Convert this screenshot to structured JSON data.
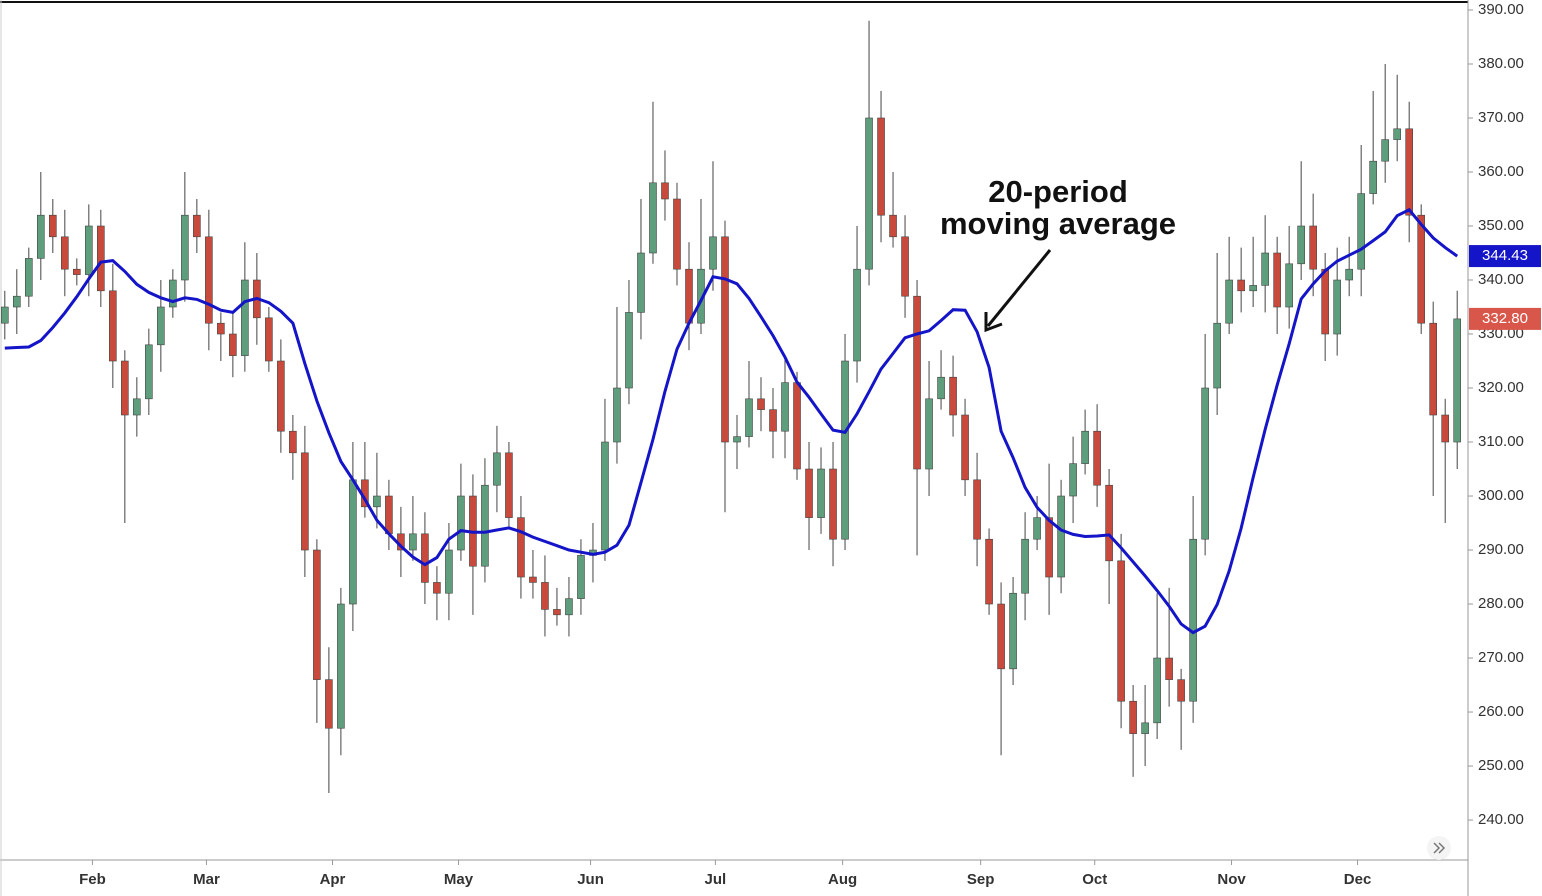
{
  "chart_data": {
    "type": "candlestick",
    "annotation": {
      "lines": [
        "20-period",
        "moving average"
      ]
    },
    "xlim": [
      -0.4,
      121.9
    ],
    "xticks": [
      {
        "value": 7.3,
        "label": "Feb"
      },
      {
        "value": 16.8,
        "label": "Mar"
      },
      {
        "value": 27.3,
        "label": "Apr"
      },
      {
        "value": 37.8,
        "label": "May"
      },
      {
        "value": 48.8,
        "label": "Jun"
      },
      {
        "value": 59.2,
        "label": "Jul"
      },
      {
        "value": 69.8,
        "label": "Aug"
      },
      {
        "value": 81.3,
        "label": "Sep"
      },
      {
        "value": 90.8,
        "label": "Oct"
      },
      {
        "value": 102.2,
        "label": "Nov"
      },
      {
        "value": 112.7,
        "label": "Dec"
      }
    ],
    "ylim": [
      232.6,
      391.85
    ],
    "yticks": [
      {
        "value": 240,
        "label": "240.00"
      },
      {
        "value": 250,
        "label": "250.00"
      },
      {
        "value": 260,
        "label": "260.00"
      },
      {
        "value": 270,
        "label": "270.00"
      },
      {
        "value": 280,
        "label": "280.00"
      },
      {
        "value": 290,
        "label": "290.00"
      },
      {
        "value": 300,
        "label": "300.00"
      },
      {
        "value": 310,
        "label": "310.00"
      },
      {
        "value": 320,
        "label": "320.00"
      },
      {
        "value": 330,
        "label": "330.00"
      },
      {
        "value": 340,
        "label": "340.00"
      },
      {
        "value": 350,
        "label": "350.00"
      },
      {
        "value": 360,
        "label": "360.00"
      },
      {
        "value": 370,
        "label": "370.00"
      },
      {
        "value": 380,
        "label": "380.00"
      },
      {
        "value": 390,
        "label": "390.00"
      }
    ],
    "candles": {
      "up_color": "#5e9e7c",
      "down_color": "#c84a3c",
      "wick_color": "#444444",
      "open": [
        332,
        335,
        337,
        344,
        352,
        348,
        342,
        341,
        350,
        338,
        325,
        315,
        318,
        328,
        335,
        340,
        352,
        348,
        332,
        330,
        326,
        340,
        333,
        325,
        312,
        308,
        290,
        266,
        257,
        280,
        303,
        298,
        300,
        293,
        290,
        293,
        284,
        282,
        290,
        300,
        287,
        302,
        308,
        296,
        285,
        284,
        279,
        278,
        281,
        289,
        290,
        310,
        320,
        334,
        345,
        358,
        355,
        342,
        332,
        342,
        348,
        310,
        311,
        318,
        316,
        312,
        321,
        305,
        296,
        305,
        292,
        325,
        342,
        370,
        352,
        348,
        337,
        305,
        318,
        322,
        315,
        303,
        292,
        280,
        268,
        282,
        292,
        296,
        285,
        300,
        306,
        312,
        302,
        288,
        262,
        256,
        258,
        270,
        266,
        262,
        292,
        320,
        332,
        340,
        338,
        339,
        345,
        335,
        343,
        350,
        342,
        330,
        340,
        342,
        356,
        362,
        366,
        368,
        352,
        332,
        315,
        310
      ],
      "high": [
        338,
        342,
        346,
        360,
        355,
        353,
        344,
        354,
        353,
        343,
        327,
        322,
        331,
        340,
        342,
        360,
        355,
        353,
        334,
        334,
        347,
        345,
        335,
        329,
        315,
        313,
        292,
        272,
        283,
        310,
        310,
        308,
        303,
        298,
        300,
        297,
        287,
        295,
        306,
        304,
        307,
        313,
        310,
        300,
        290,
        289,
        283,
        285,
        292,
        295,
        318,
        335,
        340,
        355,
        373,
        364,
        358,
        347,
        355,
        362,
        351,
        315,
        325,
        322,
        320,
        326,
        323,
        310,
        309,
        310,
        330,
        350,
        388,
        375,
        360,
        352,
        340,
        325,
        327,
        326,
        318,
        308,
        294,
        284,
        285,
        297,
        300,
        306,
        303,
        311,
        316,
        317,
        305,
        293,
        265,
        265,
        282,
        283,
        268,
        300,
        330,
        345,
        348,
        346,
        348,
        352,
        348,
        350,
        362,
        356,
        345,
        346,
        348,
        365,
        375,
        380,
        378,
        373,
        354,
        336,
        318,
        338
      ],
      "low": [
        329,
        330,
        335,
        340,
        345,
        337,
        339,
        337,
        335,
        320,
        295,
        311,
        315,
        323,
        333,
        336,
        345,
        327,
        325,
        322,
        323,
        328,
        323,
        308,
        303,
        285,
        258,
        245,
        252,
        275,
        296,
        294,
        290,
        285,
        288,
        280,
        277,
        277,
        288,
        278,
        284,
        297,
        294,
        281,
        281,
        274,
        276,
        274,
        278,
        284,
        288,
        306,
        317,
        329,
        343,
        351,
        339,
        327,
        330,
        338,
        297,
        305,
        309,
        312,
        307,
        307,
        303,
        290,
        293,
        287,
        290,
        321,
        339,
        347,
        346,
        333,
        289,
        300,
        316,
        311,
        300,
        287,
        278,
        252,
        265,
        277,
        290,
        278,
        282,
        295,
        304,
        298,
        280,
        257,
        248,
        250,
        255,
        261,
        253,
        258,
        289,
        315,
        330,
        334,
        335,
        334,
        330,
        331,
        340,
        337,
        325,
        326,
        337,
        337,
        354,
        358,
        362,
        347,
        330,
        300,
        295,
        305
      ],
      "close": [
        335,
        337,
        344,
        352,
        348,
        342,
        341,
        350,
        338,
        325,
        315,
        318,
        328,
        335,
        340,
        352,
        348,
        332,
        330,
        326,
        340,
        333,
        325,
        312,
        308,
        290,
        266,
        257,
        280,
        303,
        298,
        300,
        293,
        290,
        293,
        284,
        282,
        290,
        300,
        287,
        302,
        308,
        296,
        285,
        284,
        279,
        278,
        281,
        289,
        290,
        310,
        320,
        334,
        345,
        358,
        355,
        342,
        332,
        342,
        348,
        310,
        311,
        318,
        316,
        312,
        321,
        305,
        296,
        305,
        292,
        325,
        342,
        370,
        352,
        348,
        337,
        305,
        318,
        322,
        315,
        303,
        292,
        280,
        268,
        282,
        292,
        296,
        285,
        300,
        306,
        312,
        302,
        288,
        262,
        256,
        258,
        270,
        266,
        262,
        292,
        320,
        332,
        340,
        338,
        339,
        345,
        335,
        343,
        350,
        342,
        330,
        340,
        342,
        356,
        362,
        366,
        368,
        352,
        332,
        315,
        310,
        332.8
      ]
    },
    "series": [
      {
        "type": "line",
        "color": "#1414c8",
        "values": [
          327.4,
          327.5,
          327.6,
          328.8,
          331.2,
          333.9,
          336.9,
          340.2,
          343.3,
          343.6,
          341.6,
          339.2,
          337.7,
          336.7,
          336.0,
          336.7,
          336.4,
          335.5,
          334.4,
          334.0,
          336.0,
          336.6,
          335.8,
          334.2,
          332.0,
          324.5,
          317.6,
          311.7,
          306.4,
          303.0,
          299.4,
          295.5,
          293.0,
          290.7,
          288.7,
          287.3,
          288.6,
          292.0,
          293.6,
          293.3,
          293.3,
          293.7,
          294.1,
          293.4,
          292.4,
          291.6,
          290.8,
          290.0,
          289.6,
          289.2,
          289.6,
          290.9,
          294.6,
          302.5,
          310.5,
          319.4,
          327.2,
          332.0,
          336.2,
          340.6,
          340.2,
          339.3,
          336.6,
          333.2,
          329.7,
          325.7,
          321.1,
          318.3,
          315.2,
          312.2,
          311.8,
          315.2,
          319.3,
          323.5,
          326.4,
          329.3,
          330.0,
          330.6,
          332.5,
          334.5,
          334.4,
          330.4,
          323.8,
          312.0,
          307.1,
          301.6,
          297.9,
          295.5,
          293.7,
          292.9,
          292.5,
          292.6,
          292.8,
          290.4,
          287.8,
          285.2,
          282.5,
          279.6,
          276.3,
          274.7,
          275.9,
          279.9,
          286.1,
          294.0,
          303.4,
          312.3,
          320.5,
          328.2,
          336.5,
          339.3,
          341.7,
          343.5,
          344.6,
          345.7,
          347.3,
          348.9,
          351.9,
          353.0,
          350.3,
          347.8,
          346.0,
          344.43
        ]
      }
    ],
    "price_tags": [
      {
        "value": 344.43,
        "label": "344.43",
        "color": "#1414c8"
      },
      {
        "value": 332.8,
        "label": "332.80",
        "color": "#d9574a"
      }
    ]
  }
}
